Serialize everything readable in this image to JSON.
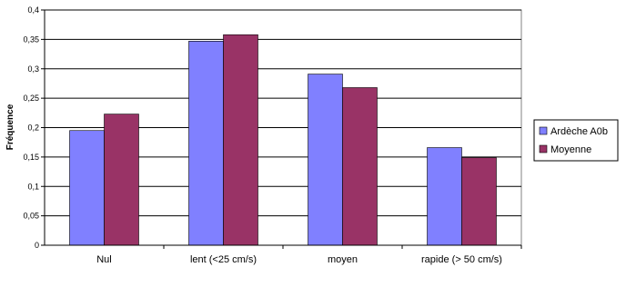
{
  "chart_data": {
    "type": "bar",
    "ylabel": "Fréquence",
    "xlabel": "",
    "categories": [
      "Nul",
      "lent (<25 cm/s)",
      "moyen",
      "rapide (> 50 cm/s)"
    ],
    "series": [
      {
        "name": "Ardèche A0b",
        "color": "#8080FF",
        "values": [
          0.195,
          0.347,
          0.291,
          0.166
        ]
      },
      {
        "name": "Moyenne",
        "color": "#993366",
        "values": [
          0.223,
          0.358,
          0.268,
          0.149
        ]
      }
    ],
    "ylim": [
      0,
      0.4
    ],
    "yticks": [
      "0",
      "0,05",
      "0,1",
      "0,15",
      "0,2",
      "0,25",
      "0,3",
      "0,35",
      "0,4"
    ],
    "grid": true,
    "legend_position": "right"
  }
}
